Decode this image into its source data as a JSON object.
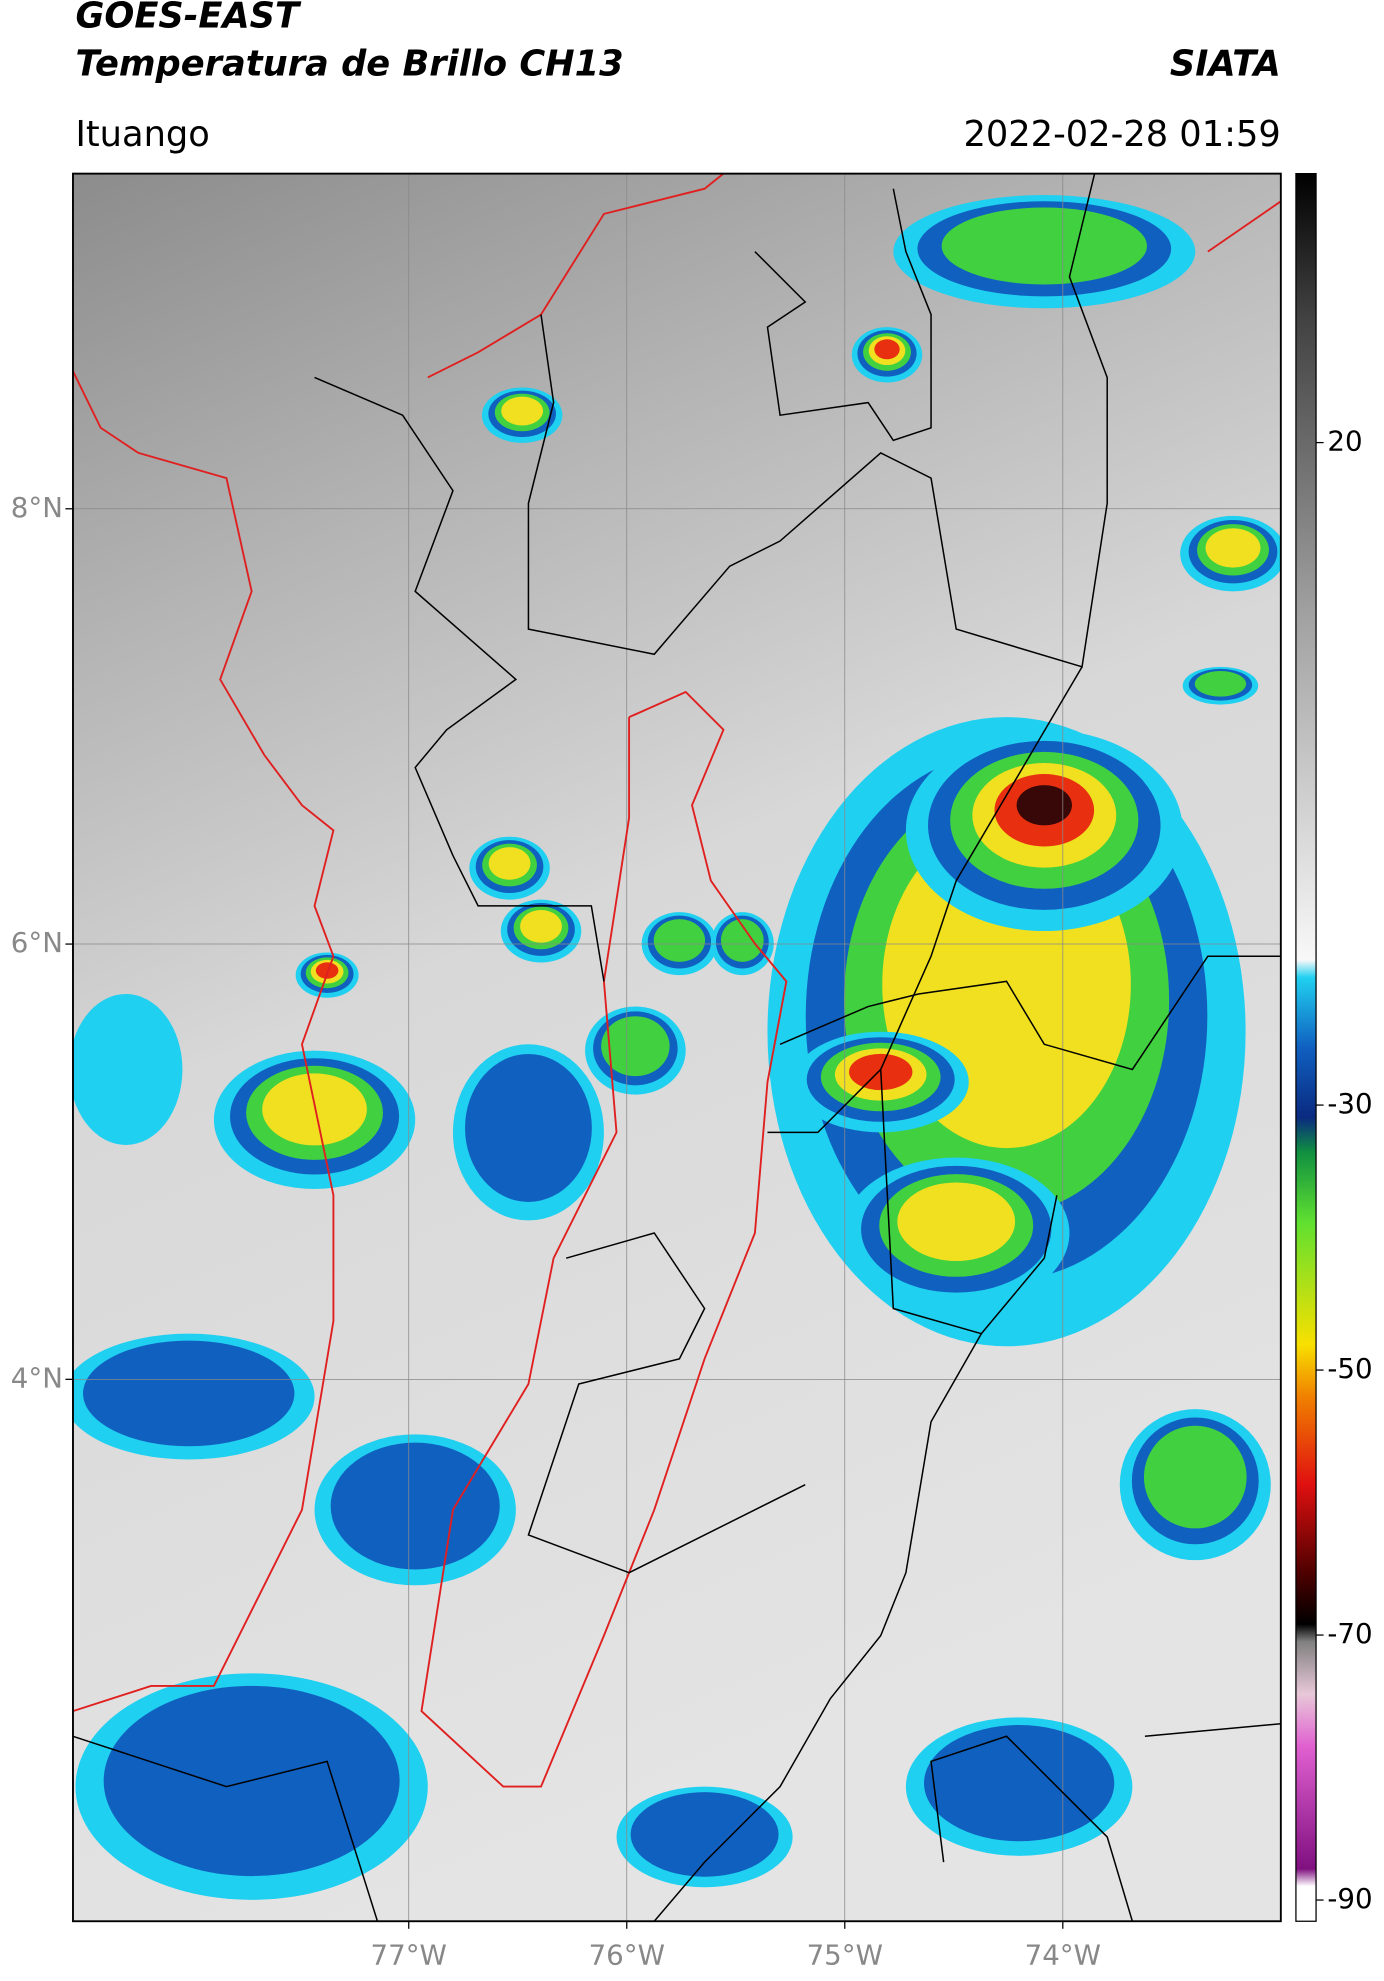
{
  "header": {
    "title": "GOES-EAST",
    "subtitle": "Temperatura de Brillo CH13",
    "source": "SIATA",
    "location": "Ituango",
    "timestamp": "2022-02-28 01:59"
  },
  "map": {
    "lon_lim": [
      -78.54,
      -73.0
    ],
    "lat_lim": [
      1.51,
      9.54
    ],
    "lat_ticks": [
      {
        "value": 8,
        "label": "8°N"
      },
      {
        "value": 6,
        "label": "6°N"
      },
      {
        "value": 4,
        "label": "4°N"
      }
    ],
    "lon_ticks": [
      {
        "value": -77,
        "label": "77°W"
      },
      {
        "value": -76,
        "label": "76°W"
      },
      {
        "value": -75,
        "label": "75°W"
      },
      {
        "value": -74,
        "label": "74°W"
      }
    ],
    "grid": true
  },
  "colorbar": {
    "lim": [
      -91.6,
      40.3
    ],
    "ticks": [
      20,
      -30,
      -50,
      -70,
      -90
    ]
  }
}
